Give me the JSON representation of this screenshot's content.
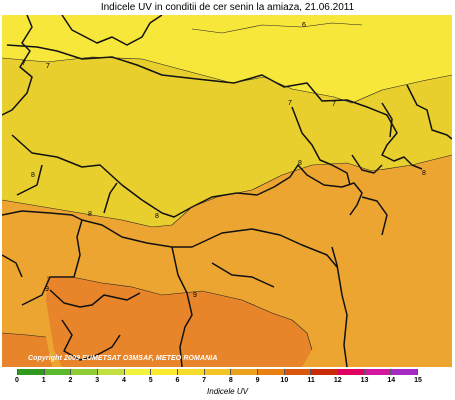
{
  "title": "Indicele UV in conditii de cer senin la amiaza, 21.06.2011",
  "copyright": "Copyright 2009 EUMETSAT O3MSAF, METEO ROMANIA",
  "contour_labels": [
    "6",
    "7",
    "7",
    "7",
    "7",
    "8",
    "8",
    "8",
    "8",
    "8",
    "9",
    "9"
  ],
  "legend": {
    "title": "Indicele UV",
    "ticks": [
      "0",
      "1",
      "2",
      "3",
      "4",
      "5",
      "6",
      "7",
      "8",
      "9",
      "10",
      "11",
      "12",
      "13",
      "14",
      "15"
    ],
    "colors": [
      "#2f9a1e",
      "#5ab82c",
      "#8fcc35",
      "#c4e040",
      "#f3f33e",
      "#fbeb2e",
      "#f8dc2a",
      "#f2c424",
      "#eba21c",
      "#e98012",
      "#d9560c",
      "#c92a08",
      "#e00060",
      "#d3179e",
      "#a62bc2"
    ]
  },
  "zone_colors": {
    "uv6": "#f7e73b",
    "uv7": "#e8cf2e",
    "uv8": "#eda531",
    "uv9": "#e8852a"
  }
}
